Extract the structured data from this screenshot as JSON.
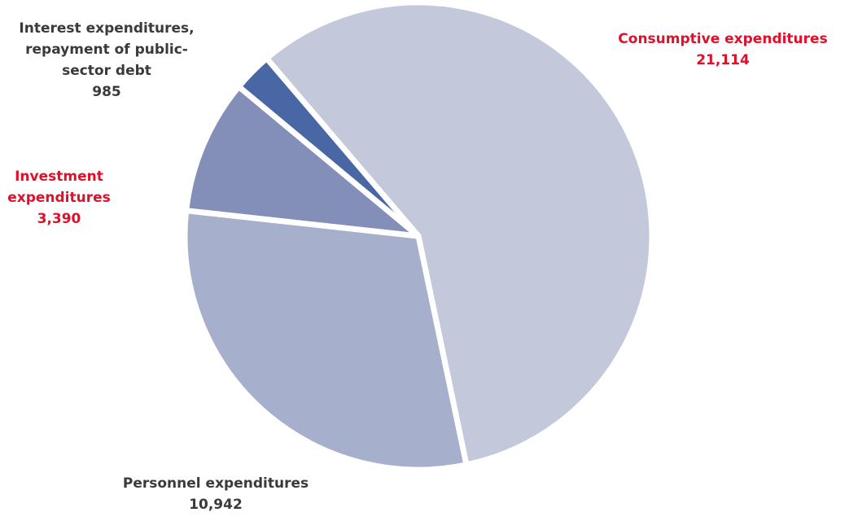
{
  "chart_data": {
    "type": "pie",
    "slices": [
      {
        "id": "consumptive",
        "label_lines": [
          "Consumptive expenditures"
        ],
        "value_text": "21,114",
        "value": 21114,
        "color": "#c3c8da",
        "label_color": "#e0102a"
      },
      {
        "id": "personnel",
        "label_lines": [
          "Personnel expenditures"
        ],
        "value_text": "10,942",
        "value": 10942,
        "color": "#a6afcb",
        "label_color": "#3a3a3a"
      },
      {
        "id": "investment",
        "label_lines": [
          "Investment",
          "expenditures"
        ],
        "value_text": "3,390",
        "value": 3390,
        "color": "#838fb8",
        "label_color": "#e0102a"
      },
      {
        "id": "interest",
        "label_lines": [
          "Interest expenditures,",
          "repayment of public-",
          "sector debt"
        ],
        "value_text": "985",
        "value": 985,
        "color": "#4966a5",
        "label_color": "#3a3a3a"
      }
    ]
  }
}
